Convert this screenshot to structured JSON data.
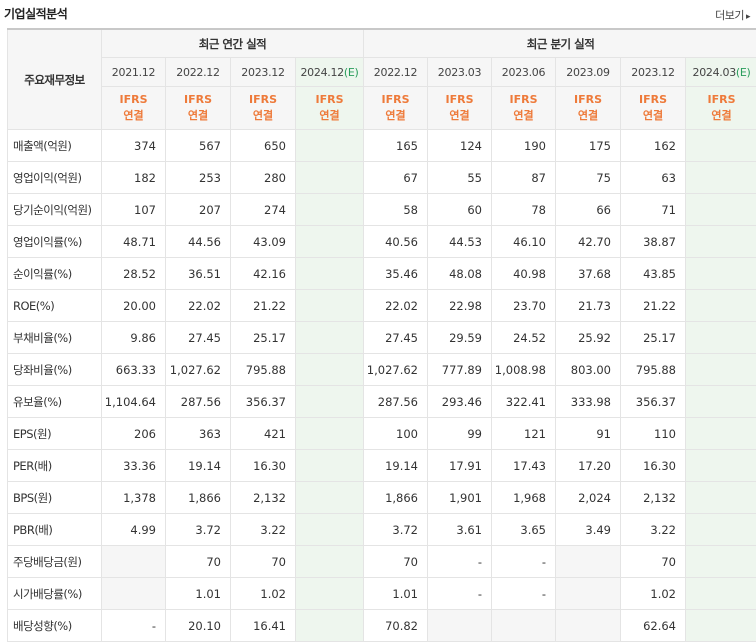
{
  "header": {
    "title": "기업실적분석",
    "more_label": "더보기",
    "more_icon": "chevron-right-icon"
  },
  "table": {
    "row_header_label": "주요재무정보",
    "annual_label": "최근 연간 실적",
    "quarterly_label": "최근 분기 실적",
    "annual_periods": [
      {
        "period": "2021.12",
        "est": ""
      },
      {
        "period": "2022.12",
        "est": ""
      },
      {
        "period": "2023.12",
        "est": ""
      },
      {
        "period": "2024.12",
        "est": "(E)"
      }
    ],
    "quarterly_periods": [
      {
        "period": "2022.12",
        "est": ""
      },
      {
        "period": "2023.03",
        "est": ""
      },
      {
        "period": "2023.06",
        "est": ""
      },
      {
        "period": "2023.09",
        "est": ""
      },
      {
        "period": "2023.12",
        "est": ""
      },
      {
        "period": "2024.03",
        "est": "(E)"
      }
    ],
    "ifrs_line1": "IFRS",
    "ifrs_line2": "연결",
    "rows": [
      {
        "label": "매출액(억원)",
        "annual": [
          "374",
          "567",
          "650",
          ""
        ],
        "quarterly": [
          "165",
          "124",
          "190",
          "175",
          "162",
          ""
        ]
      },
      {
        "label": "영업이익(억원)",
        "annual": [
          "182",
          "253",
          "280",
          ""
        ],
        "quarterly": [
          "67",
          "55",
          "87",
          "75",
          "63",
          ""
        ]
      },
      {
        "label": "당기순이익(억원)",
        "annual": [
          "107",
          "207",
          "274",
          ""
        ],
        "quarterly": [
          "58",
          "60",
          "78",
          "66",
          "71",
          ""
        ]
      },
      {
        "label": "영업이익률(%)",
        "annual": [
          "48.71",
          "44.56",
          "43.09",
          ""
        ],
        "quarterly": [
          "40.56",
          "44.53",
          "46.10",
          "42.70",
          "38.87",
          ""
        ]
      },
      {
        "label": "순이익률(%)",
        "annual": [
          "28.52",
          "36.51",
          "42.16",
          ""
        ],
        "quarterly": [
          "35.46",
          "48.08",
          "40.98",
          "37.68",
          "43.85",
          ""
        ]
      },
      {
        "label": "ROE(%)",
        "annual": [
          "20.00",
          "22.02",
          "21.22",
          ""
        ],
        "quarterly": [
          "22.02",
          "22.98",
          "23.70",
          "21.73",
          "21.22",
          ""
        ]
      },
      {
        "label": "부채비율(%)",
        "annual": [
          "9.86",
          "27.45",
          "25.17",
          ""
        ],
        "quarterly": [
          "27.45",
          "29.59",
          "24.52",
          "25.92",
          "25.17",
          ""
        ]
      },
      {
        "label": "당좌비율(%)",
        "annual": [
          "663.33",
          "1,027.62",
          "795.88",
          ""
        ],
        "quarterly": [
          "1,027.62",
          "777.89",
          "1,008.98",
          "803.00",
          "795.88",
          ""
        ]
      },
      {
        "label": "유보율(%)",
        "annual": [
          "1,104.64",
          "287.56",
          "356.37",
          ""
        ],
        "quarterly": [
          "287.56",
          "293.46",
          "322.41",
          "333.98",
          "356.37",
          ""
        ]
      },
      {
        "label": "EPS(원)",
        "annual": [
          "206",
          "363",
          "421",
          ""
        ],
        "quarterly": [
          "100",
          "99",
          "121",
          "91",
          "110",
          ""
        ]
      },
      {
        "label": "PER(배)",
        "annual": [
          "33.36",
          "19.14",
          "16.30",
          ""
        ],
        "quarterly": [
          "19.14",
          "17.91",
          "17.43",
          "17.20",
          "16.30",
          ""
        ]
      },
      {
        "label": "BPS(원)",
        "annual": [
          "1,378",
          "1,866",
          "2,132",
          ""
        ],
        "quarterly": [
          "1,866",
          "1,901",
          "1,968",
          "2,024",
          "2,132",
          ""
        ]
      },
      {
        "label": "PBR(배)",
        "annual": [
          "4.99",
          "3.72",
          "3.22",
          ""
        ],
        "quarterly": [
          "3.72",
          "3.61",
          "3.65",
          "3.49",
          "3.22",
          ""
        ]
      },
      {
        "label": "주당배당금(원)",
        "annual": [
          "",
          "70",
          "70",
          ""
        ],
        "quarterly": [
          "70",
          "-",
          "-",
          "",
          "70",
          ""
        ]
      },
      {
        "label": "시가배당률(%)",
        "annual": [
          "",
          "1.01",
          "1.02",
          ""
        ],
        "quarterly": [
          "1.01",
          "-",
          "-",
          "",
          "1.02",
          ""
        ]
      },
      {
        "label": "배당성향(%)",
        "annual": [
          "-",
          "20.10",
          "16.41",
          ""
        ],
        "quarterly": [
          "70.82",
          "",
          "",
          "",
          "62.64",
          ""
        ]
      }
    ]
  }
}
